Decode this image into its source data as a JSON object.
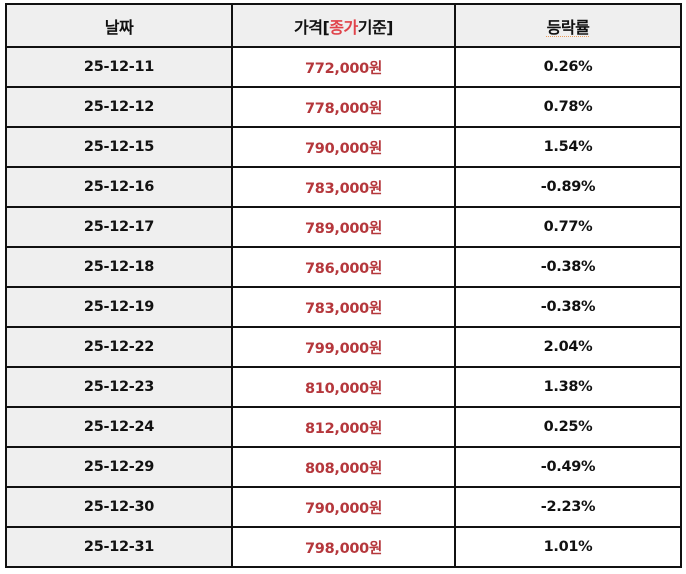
{
  "colors": {
    "header_bg": "#efefef",
    "date_col_bg": "#efefef",
    "price_text": "#b5373c",
    "header_highlight": "#e0434a",
    "spellcheck_underline": "#e89a5a",
    "border": "#111111"
  },
  "table": {
    "headers": {
      "date": "날짜",
      "price_prefix": "가격[",
      "price_highlight": "종가",
      "price_suffix": "기준]",
      "change": "등락률"
    },
    "rows": [
      {
        "date": "25-12-11",
        "price": "772,000원",
        "change": "0.26%"
      },
      {
        "date": "25-12-12",
        "price": "778,000원",
        "change": "0.78%"
      },
      {
        "date": "25-12-15",
        "price": "790,000원",
        "change": "1.54%"
      },
      {
        "date": "25-12-16",
        "price": "783,000원",
        "change": "-0.89%"
      },
      {
        "date": "25-12-17",
        "price": "789,000원",
        "change": "0.77%"
      },
      {
        "date": "25-12-18",
        "price": "786,000원",
        "change": "-0.38%"
      },
      {
        "date": "25-12-19",
        "price": "783,000원",
        "change": "-0.38%"
      },
      {
        "date": "25-12-22",
        "price": "799,000원",
        "change": "2.04%"
      },
      {
        "date": "25-12-23",
        "price": "810,000원",
        "change": "1.38%"
      },
      {
        "date": "25-12-24",
        "price": "812,000원",
        "change": "0.25%"
      },
      {
        "date": "25-12-29",
        "price": "808,000원",
        "change": "-0.49%"
      },
      {
        "date": "25-12-30",
        "price": "790,000원",
        "change": "-2.23%"
      },
      {
        "date": "25-12-31",
        "price": "798,000원",
        "change": "1.01%"
      }
    ]
  }
}
